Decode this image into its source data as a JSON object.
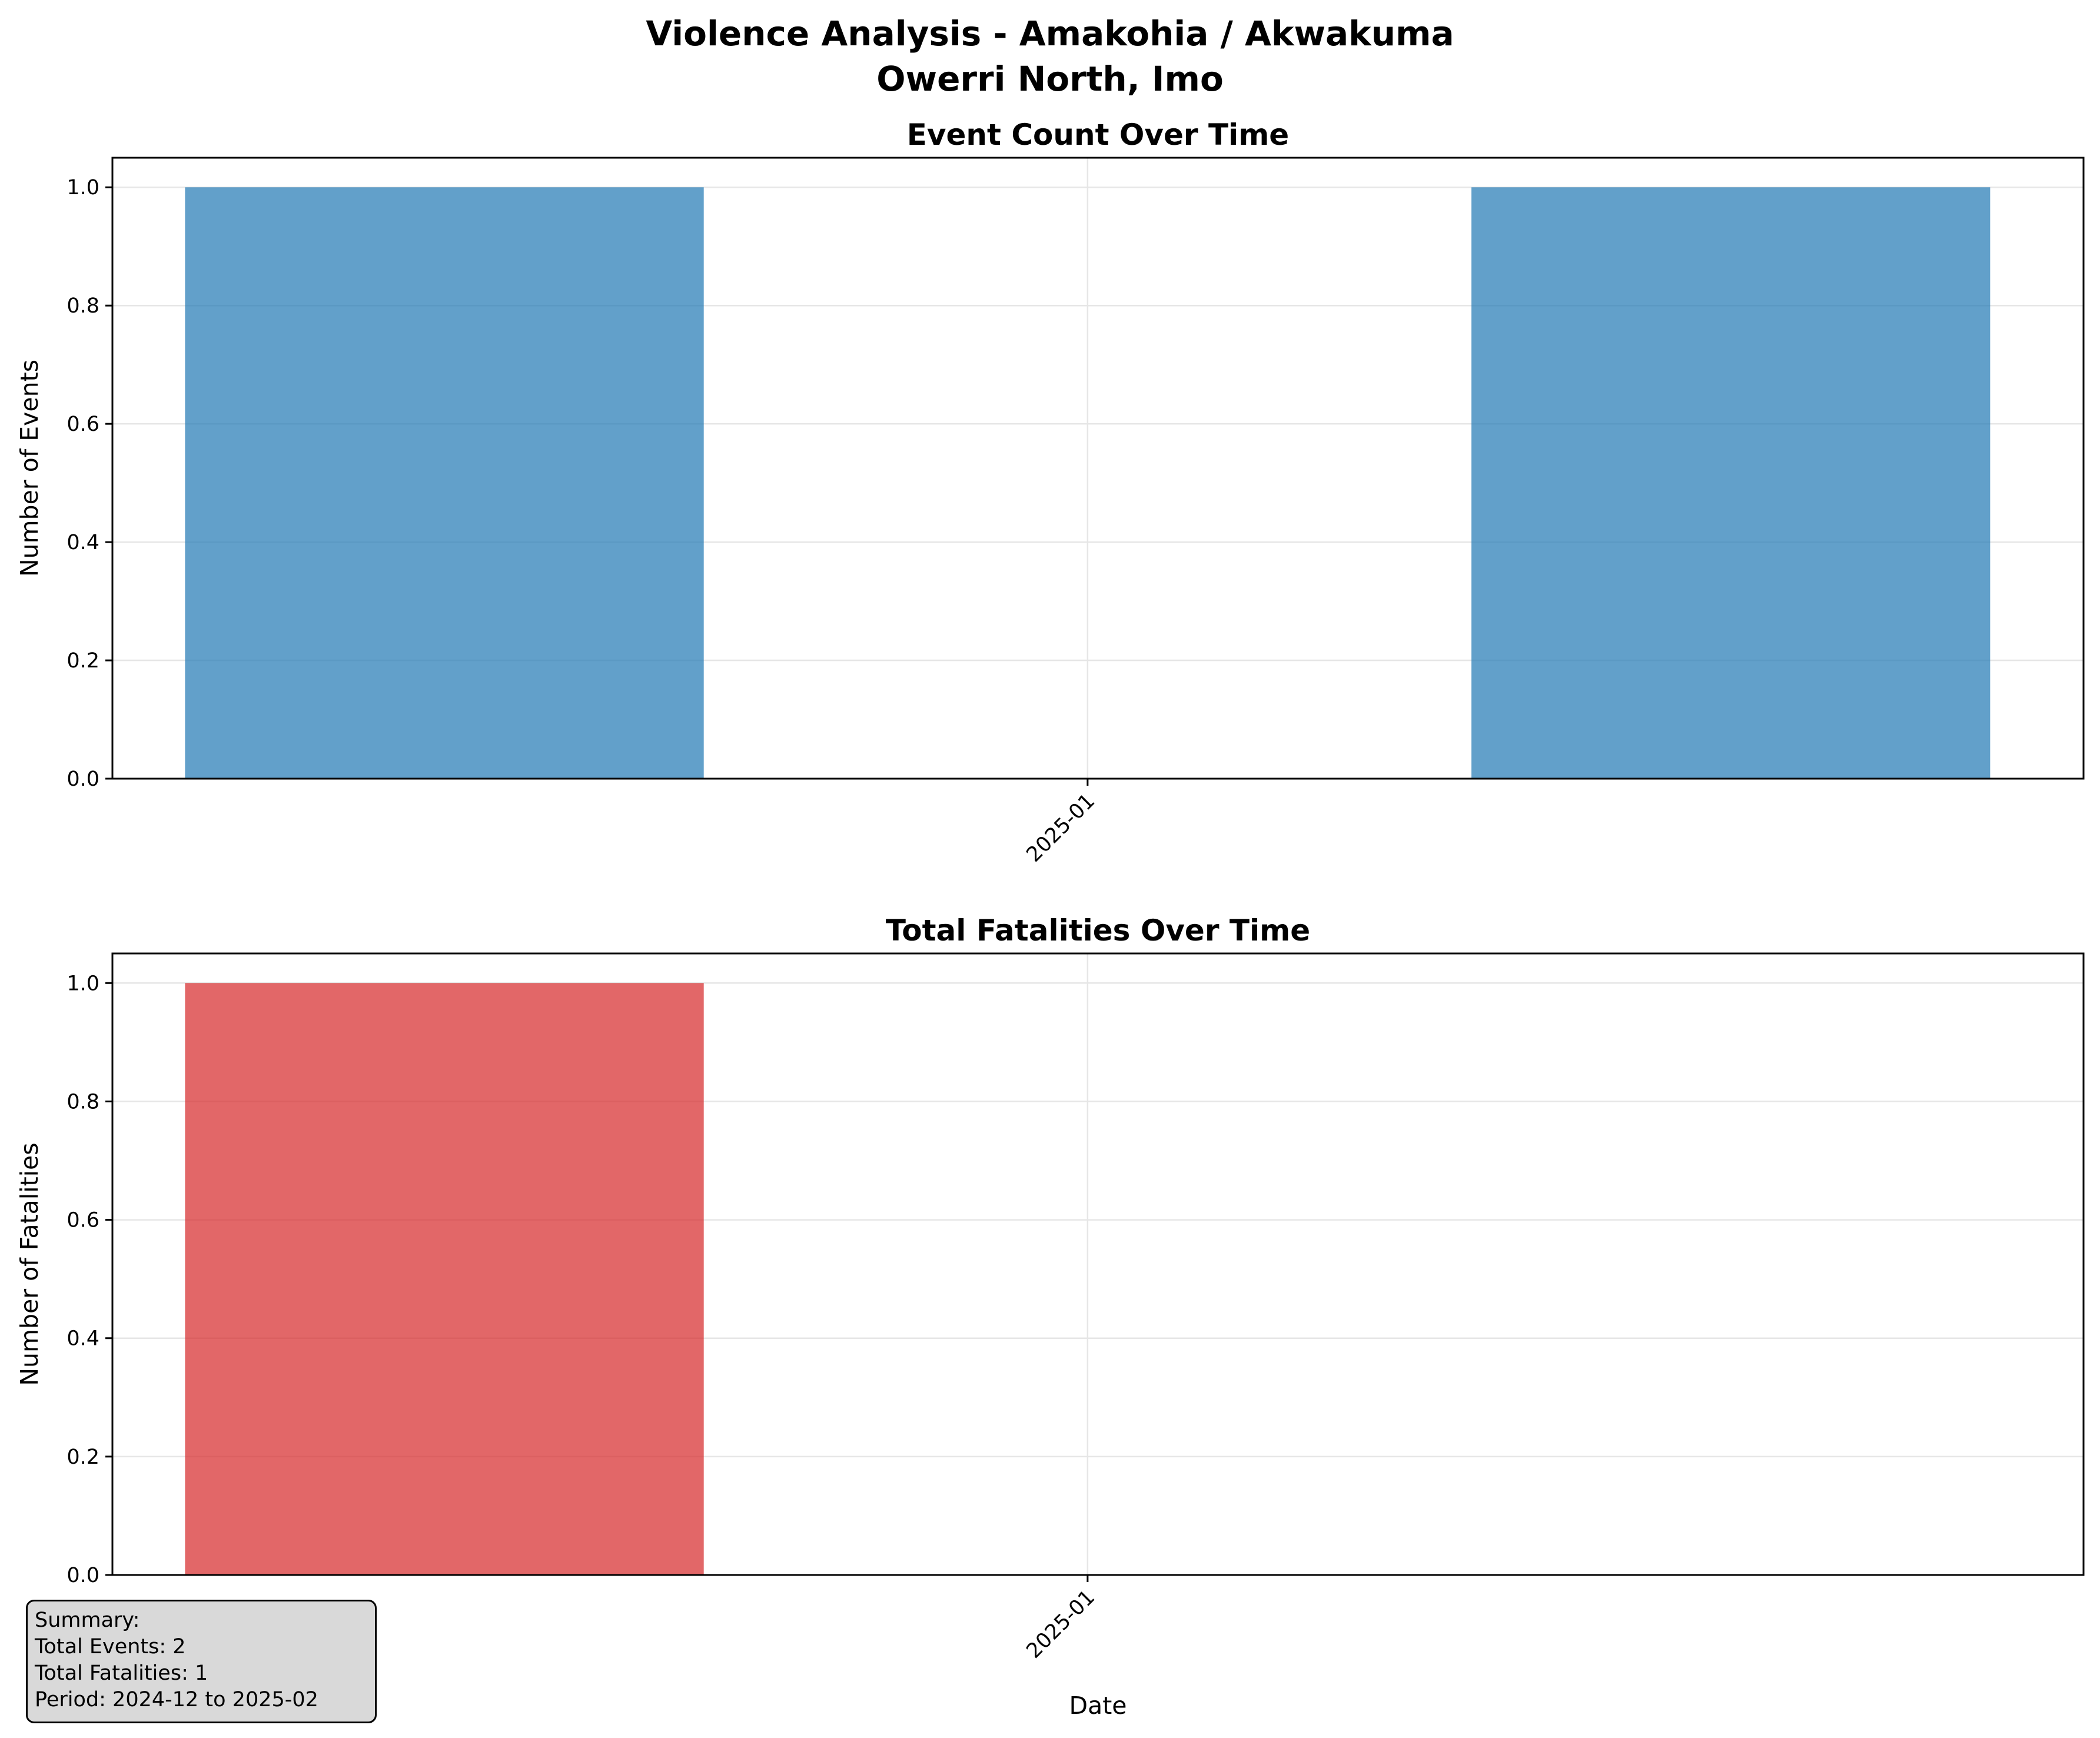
{
  "figure": {
    "suptitle_line1": "Violence Analysis - Amakohia / Akwakuma",
    "suptitle_line2": "Owerri North, Imo"
  },
  "chart_data": [
    {
      "type": "bar",
      "title": "Event Count Over Time",
      "xlabel": "",
      "ylabel": "Number of Events",
      "x": [
        "2024-12-01",
        "2025-01-01",
        "2025-02-01"
      ],
      "values": [
        1,
        0,
        1
      ],
      "xlim": [
        "2024-11-15",
        "2025-02-18"
      ],
      "ylim": [
        0,
        1.05
      ],
      "yticks": [
        "0.0",
        "0.2",
        "0.4",
        "0.6",
        "0.8",
        "1.0"
      ],
      "xtick_labels": [
        "2025-01"
      ],
      "grid": true,
      "color": "#1f77b4"
    },
    {
      "type": "bar",
      "title": "Total Fatalities Over Time",
      "xlabel": "Date",
      "ylabel": "Number of Fatalities",
      "x": [
        "2024-12-01",
        "2025-01-01",
        "2025-02-01"
      ],
      "values": [
        1,
        0,
        0
      ],
      "xlim": [
        "2024-11-15",
        "2025-02-18"
      ],
      "ylim": [
        0,
        1.05
      ],
      "yticks": [
        "0.0",
        "0.2",
        "0.4",
        "0.6",
        "0.8",
        "1.0"
      ],
      "xtick_labels": [
        "2025-01"
      ],
      "grid": true,
      "color": "#d62728"
    }
  ],
  "summary": {
    "heading": "Summary:",
    "total_events": "Total Events: 2",
    "total_fatalities": "Total Fatalities: 1",
    "period": "Period: 2024-12 to 2025-02"
  }
}
